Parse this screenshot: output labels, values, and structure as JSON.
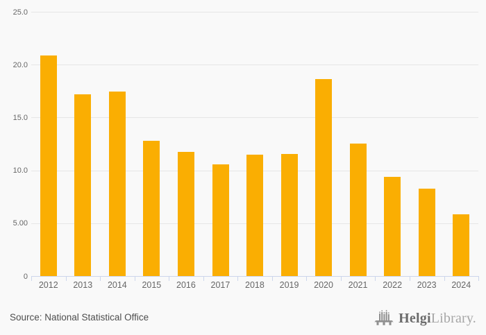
{
  "chart_data": {
    "type": "bar",
    "title": "",
    "xlabel": "",
    "ylabel": "",
    "categories": [
      "2012",
      "2013",
      "2014",
      "2015",
      "2016",
      "2017",
      "2018",
      "2019",
      "2020",
      "2021",
      "2022",
      "2023",
      "2024"
    ],
    "values": [
      20.9,
      17.2,
      17.5,
      12.8,
      11.8,
      10.6,
      11.5,
      11.6,
      18.7,
      12.6,
      9.4,
      8.3,
      5.9
    ],
    "ylim": [
      0,
      25
    ],
    "yticks": [
      0,
      5,
      10,
      15,
      20,
      25
    ],
    "ytick_labels": [
      "0",
      "5.00",
      "10.0",
      "15.0",
      "20.0",
      "25.0"
    ],
    "grid": true,
    "legend": "none",
    "bar_color": "#faae02"
  },
  "colors": {
    "background": "#f9f9f9",
    "bar": "#faae02",
    "gridline": "#e6e6e6",
    "axis": "#ccd6eb",
    "tick_label": "#666666",
    "source_text": "#4d4d4d",
    "logo_dark": "#6b6b6b",
    "logo_light": "#a6a6a6",
    "logo_icon": "#8f8f8f"
  },
  "footer": {
    "source": "Source: National Statistical Office",
    "logo": {
      "icon": "bridge-icon",
      "brand_bold": "Helgi",
      "brand_light": "Library."
    }
  }
}
